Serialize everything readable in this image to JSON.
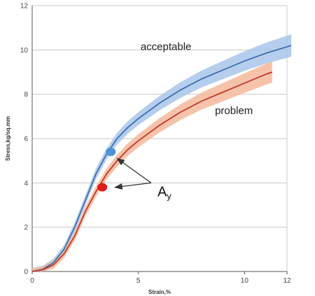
{
  "chart_data": {
    "type": "line",
    "xlabel": "Strain,%",
    "ylabel": "Stress,kg/sq.mm",
    "xlim": [
      0,
      12
    ],
    "ylim": [
      0,
      12
    ],
    "xticks": [
      "0",
      "5",
      "10",
      "12"
    ],
    "xtick_values": [
      0,
      5,
      10,
      12
    ],
    "yticks": [
      "0",
      "2",
      "4",
      "6",
      "8",
      "10",
      "12"
    ],
    "ytick_values": [
      0,
      2,
      4,
      6,
      8,
      10,
      12
    ],
    "grid": "horizontal",
    "series": [
      {
        "name": "acceptable",
        "color": "#3f6fae",
        "band_color": "#a9c6ea",
        "band_width": 0.5,
        "x": [
          0,
          0.5,
          1,
          1.5,
          2,
          2.5,
          3,
          3.5,
          4,
          4.5,
          5,
          6,
          7,
          8,
          9,
          10,
          11,
          12.2
        ],
        "y": [
          0,
          0.1,
          0.4,
          1.0,
          2.0,
          3.2,
          4.4,
          5.3,
          6.0,
          6.5,
          6.9,
          7.6,
          8.2,
          8.7,
          9.1,
          9.5,
          9.85,
          10.2
        ]
      },
      {
        "name": "problem",
        "color": "#c0392b",
        "band_color": "#f4b89b",
        "band_width": 0.5,
        "x": [
          0,
          0.5,
          1,
          1.5,
          2,
          2.5,
          3,
          3.5,
          4,
          4.5,
          5,
          6,
          7,
          8,
          9,
          10,
          11,
          11.3
        ],
        "y": [
          0,
          0.08,
          0.3,
          0.8,
          1.6,
          2.7,
          3.6,
          4.4,
          5.0,
          5.5,
          5.9,
          6.6,
          7.2,
          7.7,
          8.1,
          8.5,
          8.9,
          9.0
        ]
      }
    ],
    "points": [
      {
        "name": "acceptable-yield-point",
        "x": 3.7,
        "y": 5.4,
        "color": "#4d93d9"
      },
      {
        "name": "problem-yield-point",
        "x": 3.3,
        "y": 3.8,
        "color": "#e01b1b"
      }
    ],
    "series_labels": [
      {
        "text": "acceptable",
        "x": 6.3,
        "y": 10.0
      },
      {
        "text": "problem",
        "x": 9.5,
        "y": 7.1
      }
    ],
    "annotation": {
      "text_main": "A",
      "text_sub": "y",
      "x": 5.9,
      "y": 3.4,
      "arrow_from": [
        5.6,
        4.0
      ],
      "arrow_targets": [
        [
          4.0,
          5.1
        ],
        [
          3.9,
          3.8
        ]
      ]
    }
  }
}
